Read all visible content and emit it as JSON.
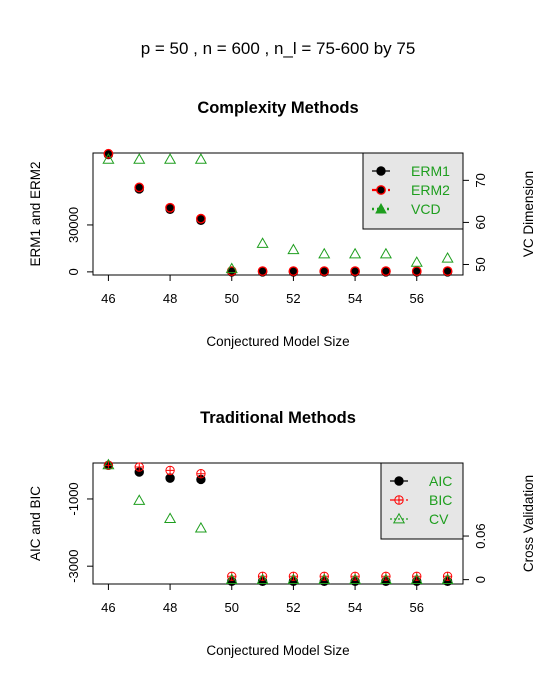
{
  "figure_title": "p =  50 ,  n =  600 , n_l =  75-600 by 75",
  "colors": {
    "black": "#000000",
    "red": "#ff0000",
    "green": "#1e9e1e",
    "legend_bg": "#e6e6e6"
  },
  "chart_data": [
    {
      "type": "scatter",
      "title": "Complexity Methods",
      "xlabel": "Conjectured Model Size",
      "ylabel": "ERM1 and ERM2",
      "ylabel_right": "VC Dimension",
      "x": [
        46,
        47,
        48,
        49,
        50,
        51,
        52,
        53,
        54,
        55,
        56,
        57
      ],
      "xlim": [
        45.5,
        57.5
      ],
      "xticks": [
        46,
        48,
        50,
        52,
        54,
        56
      ],
      "ylim_left": [
        -2000,
        76000
      ],
      "yticks_left": [
        0,
        30000
      ],
      "ylim_right": [
        47.5,
        76.5
      ],
      "yticks_right": [
        50,
        60,
        70
      ],
      "legend_position": "top-right",
      "series": [
        {
          "name": "ERM1",
          "axis": "left",
          "color": "#000000",
          "marker": "filled-circle",
          "values": [
            75000,
            53000,
            40000,
            33000,
            0,
            0,
            0,
            0,
            0,
            0,
            0,
            0
          ]
        },
        {
          "name": "ERM2",
          "axis": "left",
          "color": "#ff0000",
          "marker": "filled-circle-red-edge",
          "values": [
            75500,
            54000,
            41000,
            34000,
            500,
            500,
            500,
            500,
            500,
            500,
            500,
            500
          ]
        },
        {
          "name": "VCD",
          "axis": "right",
          "color": "#1e9e1e",
          "marker": "open-triangle",
          "values": [
            75,
            75,
            75,
            75,
            49,
            55,
            53.5,
            52.5,
            52.5,
            52.5,
            50.5,
            51.5
          ]
        }
      ]
    },
    {
      "type": "scatter",
      "title": "Traditional Methods",
      "xlabel": "Conjectured Model Size",
      "ylabel": "AIC and BIC",
      "ylabel_right": "Cross Validation",
      "x": [
        46,
        47,
        48,
        49,
        50,
        51,
        52,
        53,
        54,
        55,
        56,
        57
      ],
      "xlim": [
        45.5,
        57.5
      ],
      "xticks": [
        46,
        48,
        50,
        52,
        54,
        56
      ],
      "ylim_left": [
        -3530,
        70
      ],
      "yticks_left": [
        -1000,
        -3000
      ],
      "ylim_right": [
        -0.006,
        0.1605
      ],
      "yticks_right": [
        0.0,
        0.06
      ],
      "legend_position": "top-right",
      "series": [
        {
          "name": "AIC",
          "axis": "left",
          "color": "#000000",
          "marker": "filled-circle",
          "values": [
            0,
            -200,
            -380,
            -420,
            -3450,
            -3450,
            -3450,
            -3450,
            -3450,
            -3450,
            -3450,
            -3450
          ]
        },
        {
          "name": "BIC",
          "axis": "left",
          "color": "#ff0000",
          "marker": "open-circle-plus",
          "values": [
            0,
            -50,
            -150,
            -250,
            -3300,
            -3300,
            -3300,
            -3300,
            -3300,
            -3300,
            -3300,
            -3300
          ]
        },
        {
          "name": "CV",
          "axis": "right",
          "color": "#1e9e1e",
          "marker": "open-triangle",
          "values": [
            0.158,
            0.109,
            0.084,
            0.071,
            0.0,
            0.0,
            0.0,
            0.0,
            0.0,
            0.0,
            0.0,
            0.0
          ]
        }
      ]
    }
  ]
}
